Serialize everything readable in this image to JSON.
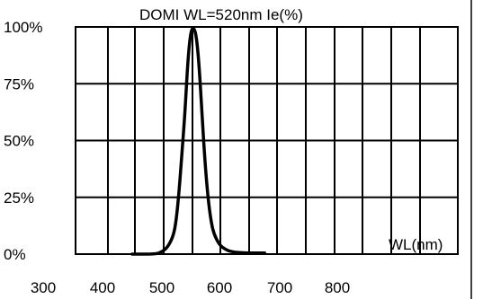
{
  "chart_data": {
    "type": "line",
    "title": "DOMI WL=520nm  Ie(%)",
    "xlabel": "WL(nm)",
    "ylabel": "",
    "xlim": [
      300,
      800
    ],
    "ylim": [
      0,
      100
    ],
    "x_ticks": [
      "300",
      "400",
      "500",
      "600",
      "700",
      "800"
    ],
    "y_ticks": [
      "0%",
      "25%",
      "50%",
      "75%",
      "100%"
    ],
    "grid": true,
    "legend": "none",
    "series": [
      {
        "name": "",
        "x": [
          450,
          490,
          500,
          510,
          520,
          525,
          530,
          535,
          540,
          545,
          550,
          555,
          560,
          565,
          570,
          575,
          580,
          585,
          590,
          600,
          610,
          620,
          640,
          675
        ],
        "y": [
          0,
          0,
          1,
          3,
          8,
          15,
          28,
          45,
          62,
          85,
          98,
          100,
          96,
          82,
          60,
          40,
          25,
          15,
          9,
          4,
          2,
          1,
          0.5,
          0.5
        ]
      }
    ],
    "colors": {
      "line": "#000000",
      "grid": "#000000",
      "background": "#ffffff"
    }
  }
}
